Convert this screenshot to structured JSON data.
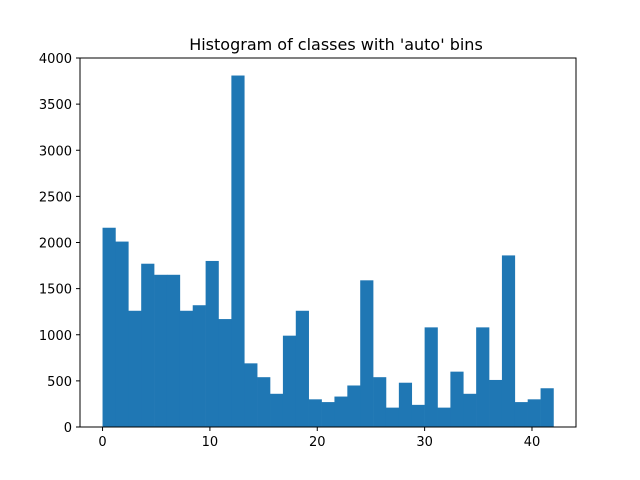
{
  "chart_data": {
    "type": "bar",
    "title": "Histogram of classes with 'auto' bins",
    "xlabel": "",
    "ylabel": "",
    "xlim": [
      -2.1,
      44.1
    ],
    "ylim": [
      0,
      4000
    ],
    "x_ticks": [
      0,
      10,
      20,
      30,
      40
    ],
    "y_ticks": [
      0,
      500,
      1000,
      1500,
      2000,
      2500,
      3000,
      3500,
      4000
    ],
    "grid": false,
    "bar_color": "#1f77b4",
    "bins": [
      {
        "start": 0.0,
        "end": 1.2,
        "count": 2160
      },
      {
        "start": 1.2,
        "end": 2.4,
        "count": 2010
      },
      {
        "start": 2.4,
        "end": 3.6,
        "count": 1260
      },
      {
        "start": 3.6,
        "end": 4.8,
        "count": 1770
      },
      {
        "start": 4.8,
        "end": 6.0,
        "count": 1650
      },
      {
        "start": 6.0,
        "end": 7.2,
        "count": 1650
      },
      {
        "start": 7.2,
        "end": 8.4,
        "count": 1260
      },
      {
        "start": 8.4,
        "end": 9.6,
        "count": 1320
      },
      {
        "start": 9.6,
        "end": 10.8,
        "count": 1800
      },
      {
        "start": 10.8,
        "end": 12.0,
        "count": 1170
      },
      {
        "start": 12.0,
        "end": 13.2,
        "count": 3810
      },
      {
        "start": 13.2,
        "end": 14.4,
        "count": 690
      },
      {
        "start": 14.4,
        "end": 15.6,
        "count": 540
      },
      {
        "start": 15.6,
        "end": 16.8,
        "count": 360
      },
      {
        "start": 16.8,
        "end": 18.0,
        "count": 990
      },
      {
        "start": 18.0,
        "end": 19.2,
        "count": 1260
      },
      {
        "start": 19.2,
        "end": 20.4,
        "count": 300
      },
      {
        "start": 20.4,
        "end": 21.6,
        "count": 270
      },
      {
        "start": 21.6,
        "end": 22.8,
        "count": 330
      },
      {
        "start": 22.8,
        "end": 24.0,
        "count": 450
      },
      {
        "start": 24.0,
        "end": 25.2,
        "count": 1590
      },
      {
        "start": 25.2,
        "end": 26.4,
        "count": 540
      },
      {
        "start": 26.4,
        "end": 27.6,
        "count": 210
      },
      {
        "start": 27.6,
        "end": 28.8,
        "count": 480
      },
      {
        "start": 28.8,
        "end": 30.0,
        "count": 240
      },
      {
        "start": 30.0,
        "end": 31.2,
        "count": 1080
      },
      {
        "start": 31.2,
        "end": 32.4,
        "count": 210
      },
      {
        "start": 32.4,
        "end": 33.6,
        "count": 600
      },
      {
        "start": 33.6,
        "end": 34.8,
        "count": 360
      },
      {
        "start": 34.8,
        "end": 36.0,
        "count": 1080
      },
      {
        "start": 36.0,
        "end": 37.2,
        "count": 510
      },
      {
        "start": 37.2,
        "end": 38.4,
        "count": 1860
      },
      {
        "start": 38.4,
        "end": 39.6,
        "count": 270
      },
      {
        "start": 39.6,
        "end": 40.8,
        "count": 300
      },
      {
        "start": 40.8,
        "end": 42.0,
        "count": 420
      }
    ]
  }
}
